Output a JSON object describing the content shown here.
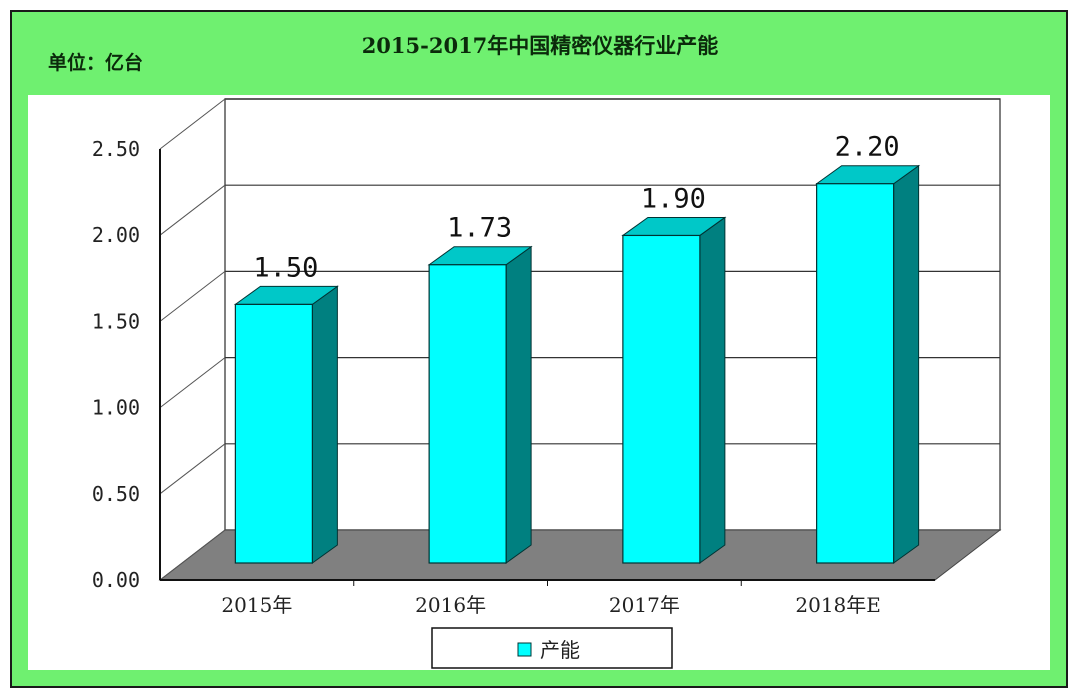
{
  "chart_data": {
    "type": "bar",
    "title": "2015-2017年中国精密仪器行业产能",
    "unit_label": "单位：亿台",
    "categories": [
      "2015年",
      "2016年",
      "2017年",
      "2018年E"
    ],
    "series": [
      {
        "name": "产能",
        "values": [
          1.5,
          1.73,
          1.9,
          2.2
        ],
        "color": "#00ffff"
      }
    ],
    "data_labels": [
      "1.50",
      "1.73",
      "1.90",
      "2.20"
    ],
    "yticks": [
      "0.00",
      "0.50",
      "1.00",
      "1.50",
      "2.00",
      "2.50"
    ],
    "ylim": [
      0,
      2.5
    ],
    "grid": true,
    "style": "3d",
    "legend": "bottom-center",
    "colors": {
      "background": "#6ff070",
      "floor": "#808080",
      "bar_side": "#008080"
    }
  }
}
